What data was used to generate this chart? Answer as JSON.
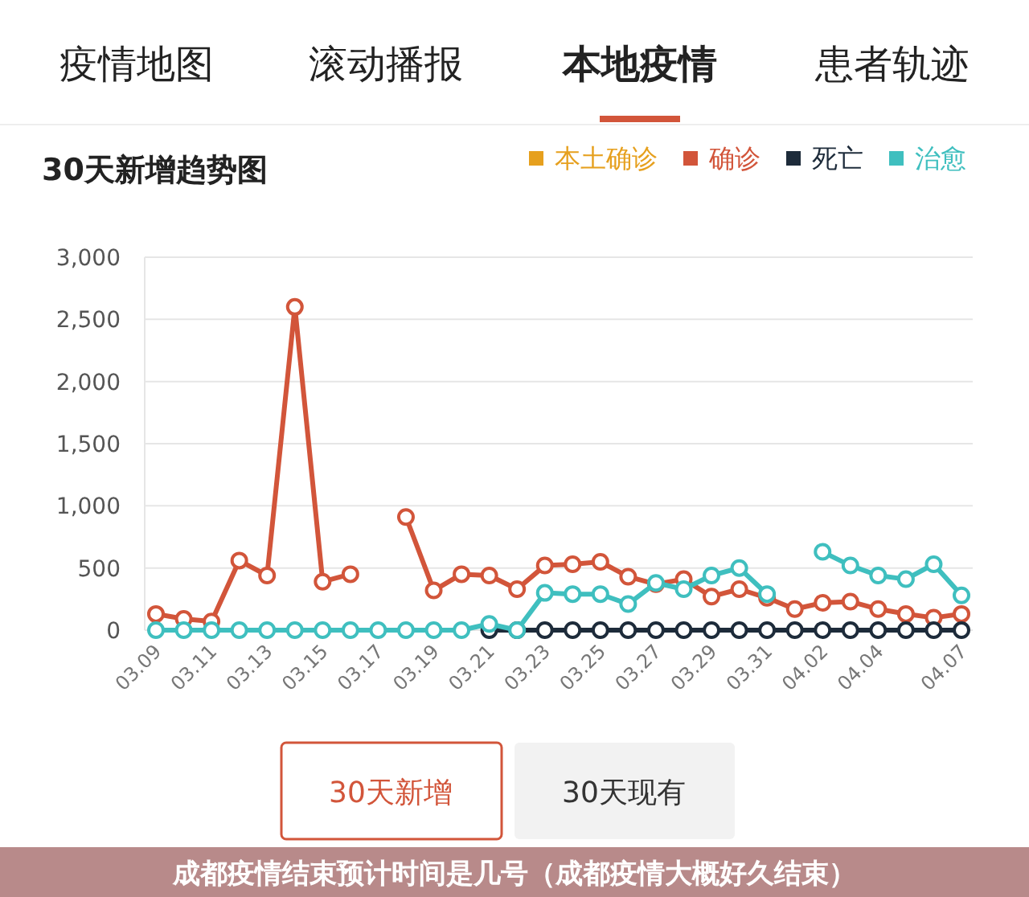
{
  "chart_data": {
    "type": "line",
    "title": "30天新增趋势图",
    "annotations": [
      "疫情地图",
      "滚动播报",
      "本地疫情",
      "患者轨迹",
      "30天新增",
      "30天现有",
      "成都疫情结束预计时间是几号（成都疫情大概好久结束）"
    ],
    "categories": [
      "03.09",
      null,
      "03.11",
      null,
      "03.13",
      null,
      "03.15",
      null,
      "03.17",
      null,
      "03.19",
      null,
      "03.21",
      null,
      "03.23",
      null,
      "03.25",
      null,
      "03.27",
      null,
      "03.29",
      null,
      "03.31",
      null,
      "04.02",
      null,
      "04.04",
      null,
      null,
      "04.07"
    ],
    "series": [
      {
        "name": "本土确诊",
        "color": "#e6a01e",
        "values": [
          null,
          null,
          null,
          null,
          null,
          null,
          null,
          null,
          null,
          null,
          null,
          null,
          null,
          null,
          null,
          null,
          null,
          null,
          null,
          null,
          null,
          null,
          null,
          null,
          null,
          null,
          null,
          null,
          null,
          null
        ]
      },
      {
        "name": "确诊",
        "color": "#d2553a",
        "values": [
          130,
          90,
          70,
          560,
          440,
          2600,
          390,
          450,
          null,
          910,
          320,
          450,
          440,
          330,
          520,
          530,
          550,
          430,
          370,
          410,
          270,
          330,
          260,
          170,
          220,
          230,
          170,
          130,
          100,
          130
        ]
      },
      {
        "name": "死亡",
        "color": "#1d2b3a",
        "values": [
          null,
          null,
          null,
          null,
          null,
          null,
          null,
          null,
          null,
          null,
          null,
          null,
          0,
          0,
          0,
          0,
          0,
          0,
          0,
          0,
          0,
          0,
          0,
          0,
          0,
          0,
          0,
          0,
          0,
          0
        ]
      },
      {
        "name": "治愈",
        "color": "#3fbfbf",
        "values": [
          0,
          0,
          0,
          0,
          0,
          0,
          0,
          0,
          0,
          0,
          0,
          0,
          50,
          0,
          300,
          290,
          290,
          210,
          380,
          330,
          440,
          500,
          290,
          null,
          630,
          520,
          440,
          410,
          530,
          280
        ]
      }
    ],
    "ylim": [
      0,
      3000
    ],
    "yticks": [
      0,
      {
        "value": 500,
        "label": "500"
      },
      {
        "value": 1000,
        "label": "1,000"
      },
      {
        "value": 1500,
        "label": "1,500"
      },
      {
        "value": 2000,
        "label": "2,000"
      },
      {
        "value": 2500,
        "label": "2,500"
      },
      {
        "value": 3000,
        "label": "3,000"
      }
    ],
    "grid": "y",
    "legend": "top right",
    "marker": "circle",
    "line_style": "solid"
  }
}
